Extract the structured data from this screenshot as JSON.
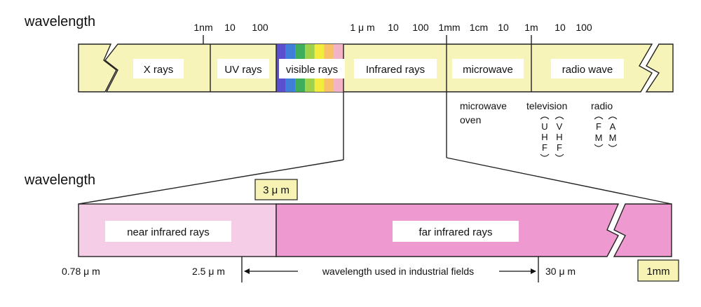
{
  "top_section": {
    "heading": "wavelength",
    "scale_labels": [
      "1nm",
      "10",
      "100",
      "1 μ m",
      "10",
      "100",
      "1mm",
      "1cm",
      "10",
      "1m",
      "10",
      "100"
    ],
    "bands": {
      "xrays": "X rays",
      "uv": "UV rays",
      "visible": "visible rays",
      "infrared": "Infrared rays",
      "microwave": "microwave",
      "radio": "radio wave"
    },
    "visible_spectrum_colors": [
      "#5a4fcf",
      "#3f7fd9",
      "#3fae5a",
      "#9fd24a",
      "#f3ec3a",
      "#f7c16a",
      "#f2b3c9"
    ],
    "applications": {
      "microwave_oven_line1": "microwave",
      "microwave_oven_line2": "oven",
      "television": "television",
      "radio": "radio",
      "uhf": [
        "U",
        "H",
        "F"
      ],
      "vhf": [
        "V",
        "H",
        "F"
      ],
      "fm": [
        "F",
        "M"
      ],
      "am": [
        "A",
        "M"
      ]
    }
  },
  "bottom_section": {
    "heading": "wavelength",
    "boundary_label": "3 μ m",
    "bands": {
      "near": "near infrared rays",
      "far": "far infrared rays"
    },
    "scale": {
      "start": "0.78 μ m",
      "industrial_start": "2.5 μ m",
      "industrial_label": "wavelength used in industrial fields",
      "industrial_end": "30 μ m",
      "end": "1mm"
    }
  },
  "colors": {
    "band_fill": "#f7f4b9",
    "near_ir_fill": "#f6cde6",
    "far_ir_fill": "#ee99cf",
    "label_box_fill": "#f6f3b4",
    "outline": "#222222"
  }
}
